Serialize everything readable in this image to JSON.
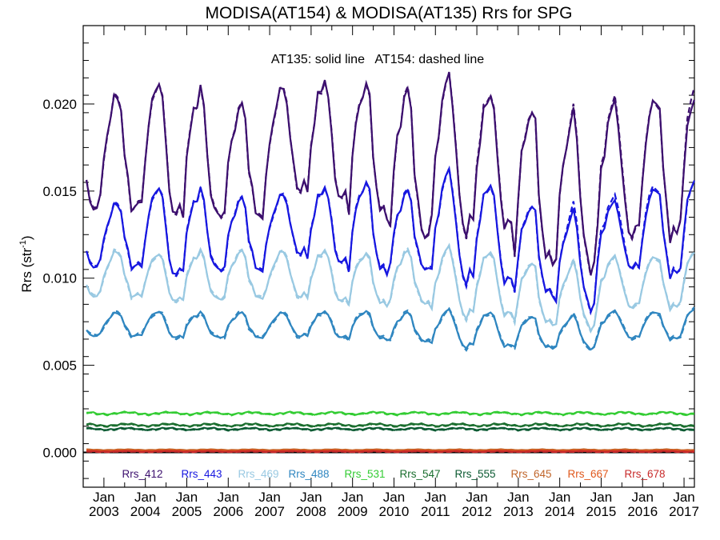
{
  "chart_data": {
    "type": "line",
    "title": "MODISA(AT154) & MODISA(AT135)  Rrs for SPG",
    "ylabel_base": "Rrs (str",
    "ylabel_sup": "-1",
    "ylabel_close": ")",
    "annotation": "AT135: solid line   AT154: dashed line",
    "ylim": [
      -0.002,
      0.0245
    ],
    "xlim": [
      2002.5,
      2017.25
    ],
    "yticks": [
      {
        "value": 0.0,
        "label": "0.000"
      },
      {
        "value": 0.005,
        "label": "0.005"
      },
      {
        "value": 0.01,
        "label": "0.010"
      },
      {
        "value": 0.015,
        "label": "0.015"
      },
      {
        "value": 0.02,
        "label": "0.020"
      }
    ],
    "xticks": [
      {
        "value": 2003,
        "month": "Jan",
        "year": "2003"
      },
      {
        "value": 2004,
        "month": "Jan",
        "year": "2004"
      },
      {
        "value": 2005,
        "month": "Jan",
        "year": "2005"
      },
      {
        "value": 2006,
        "month": "Jan",
        "year": "2006"
      },
      {
        "value": 2007,
        "month": "Jan",
        "year": "2007"
      },
      {
        "value": 2008,
        "month": "Jan",
        "year": "2008"
      },
      {
        "value": 2009,
        "month": "Jan",
        "year": "2009"
      },
      {
        "value": 2010,
        "month": "Jan",
        "year": "2010"
      },
      {
        "value": 2011,
        "month": "Jan",
        "year": "2011"
      },
      {
        "value": 2012,
        "month": "Jan",
        "year": "2012"
      },
      {
        "value": 2013,
        "month": "Jan",
        "year": "2013"
      },
      {
        "value": 2014,
        "month": "Jan",
        "year": "2014"
      },
      {
        "value": 2015,
        "month": "Jan",
        "year": "2015"
      },
      {
        "value": 2016,
        "month": "Jan",
        "year": "2016"
      },
      {
        "value": 2017,
        "month": "Jan",
        "year": "2017"
      }
    ],
    "legend_position": "bottom",
    "series_style": {
      "AT135": "solid",
      "AT154": "dashed"
    },
    "series": [
      {
        "name": "Rrs_412",
        "color": "#3c0f6e",
        "peaks": [
          0.0209,
          0.0218,
          0.0212,
          0.0203,
          0.0213,
          0.0218,
          0.0216,
          0.0212,
          0.0221,
          0.0211,
          0.0202,
          0.0198,
          0.0205,
          0.021,
          0.0215
        ],
        "troughs": [
          0.0141,
          0.0137,
          0.0136,
          0.0136,
          0.0152,
          0.0146,
          0.0137,
          0.0125,
          0.0129,
          0.013,
          0.011,
          0.0107,
          0.0126,
          0.0124,
          0.013
        ],
        "peaks_at154": [
          0.0209,
          0.0218,
          0.0212,
          0.0203,
          0.0213,
          0.0218,
          0.0216,
          0.0212,
          0.0221,
          0.0213,
          0.0202,
          0.0199,
          0.0208,
          0.021,
          0.0222
        ]
      },
      {
        "name": "Rrs_443",
        "color": "#1717e0",
        "peaks": [
          0.0145,
          0.0156,
          0.0153,
          0.0148,
          0.015,
          0.0155,
          0.0158,
          0.0152,
          0.0165,
          0.0158,
          0.0145,
          0.014,
          0.0146,
          0.0156,
          0.0165
        ],
        "troughs": [
          0.0107,
          0.0102,
          0.0105,
          0.0105,
          0.0115,
          0.0109,
          0.0104,
          0.0106,
          0.01,
          0.0098,
          0.0091,
          0.0084,
          0.0107,
          0.0102,
          0.0103
        ],
        "peaks_at154": [
          0.0145,
          0.0156,
          0.0153,
          0.0148,
          0.015,
          0.0155,
          0.0158,
          0.0152,
          0.0165,
          0.0158,
          0.0145,
          0.0143,
          0.015,
          0.0158,
          0.0164
        ]
      },
      {
        "name": "Rrs_469",
        "color": "#99c9e2",
        "peaks": [
          0.0117,
          0.0116,
          0.0117,
          0.0117,
          0.0117,
          0.0118,
          0.0116,
          0.0117,
          0.012,
          0.0118,
          0.0111,
          0.011,
          0.0114,
          0.0115,
          0.012
        ],
        "troughs": [
          0.009,
          0.0087,
          0.0088,
          0.0089,
          0.009,
          0.0087,
          0.0085,
          0.0086,
          0.0079,
          0.0079,
          0.0074,
          0.0072,
          0.0084,
          0.0083,
          0.0085
        ],
        "peaks_at154": [
          0.0117,
          0.0116,
          0.0117,
          0.0117,
          0.0117,
          0.0118,
          0.0116,
          0.0117,
          0.012,
          0.0118,
          0.0111,
          0.011,
          0.0114,
          0.0115,
          0.012
        ]
      },
      {
        "name": "Rrs_488",
        "color": "#2f86c0",
        "peaks": [
          0.0081,
          0.0082,
          0.0081,
          0.0081,
          0.0081,
          0.0082,
          0.0082,
          0.0081,
          0.0083,
          0.0082,
          0.0079,
          0.0079,
          0.0082,
          0.0082,
          0.0085
        ],
        "troughs": [
          0.0067,
          0.0066,
          0.0066,
          0.0066,
          0.0067,
          0.0066,
          0.0065,
          0.0064,
          0.0061,
          0.0061,
          0.006,
          0.006,
          0.0066,
          0.0065,
          0.0066
        ],
        "peaks_at154": [
          0.0081,
          0.0082,
          0.0081,
          0.0081,
          0.0081,
          0.0082,
          0.0082,
          0.0081,
          0.0083,
          0.0082,
          0.0079,
          0.0079,
          0.0082,
          0.0082,
          0.0085
        ]
      },
      {
        "name": "Rrs_531",
        "color": "#33cc33",
        "mean": 0.00225,
        "amp": 0.0001
      },
      {
        "name": "Rrs_547",
        "color": "#1a6e2e",
        "mean": 0.00158,
        "amp": 0.0001
      },
      {
        "name": "Rrs_555",
        "color": "#0b5a32",
        "mean": 0.00135,
        "amp": 8e-05
      },
      {
        "name": "Rrs_645",
        "color": "#c0652a",
        "mean": 0.00015,
        "amp": 3e-05
      },
      {
        "name": "Rrs_667",
        "color": "#e0571b",
        "mean": 0.0001,
        "amp": 3e-05
      },
      {
        "name": "Rrs_678",
        "color": "#c82a2a",
        "mean": 6e-05,
        "amp": 3e-05
      }
    ]
  }
}
